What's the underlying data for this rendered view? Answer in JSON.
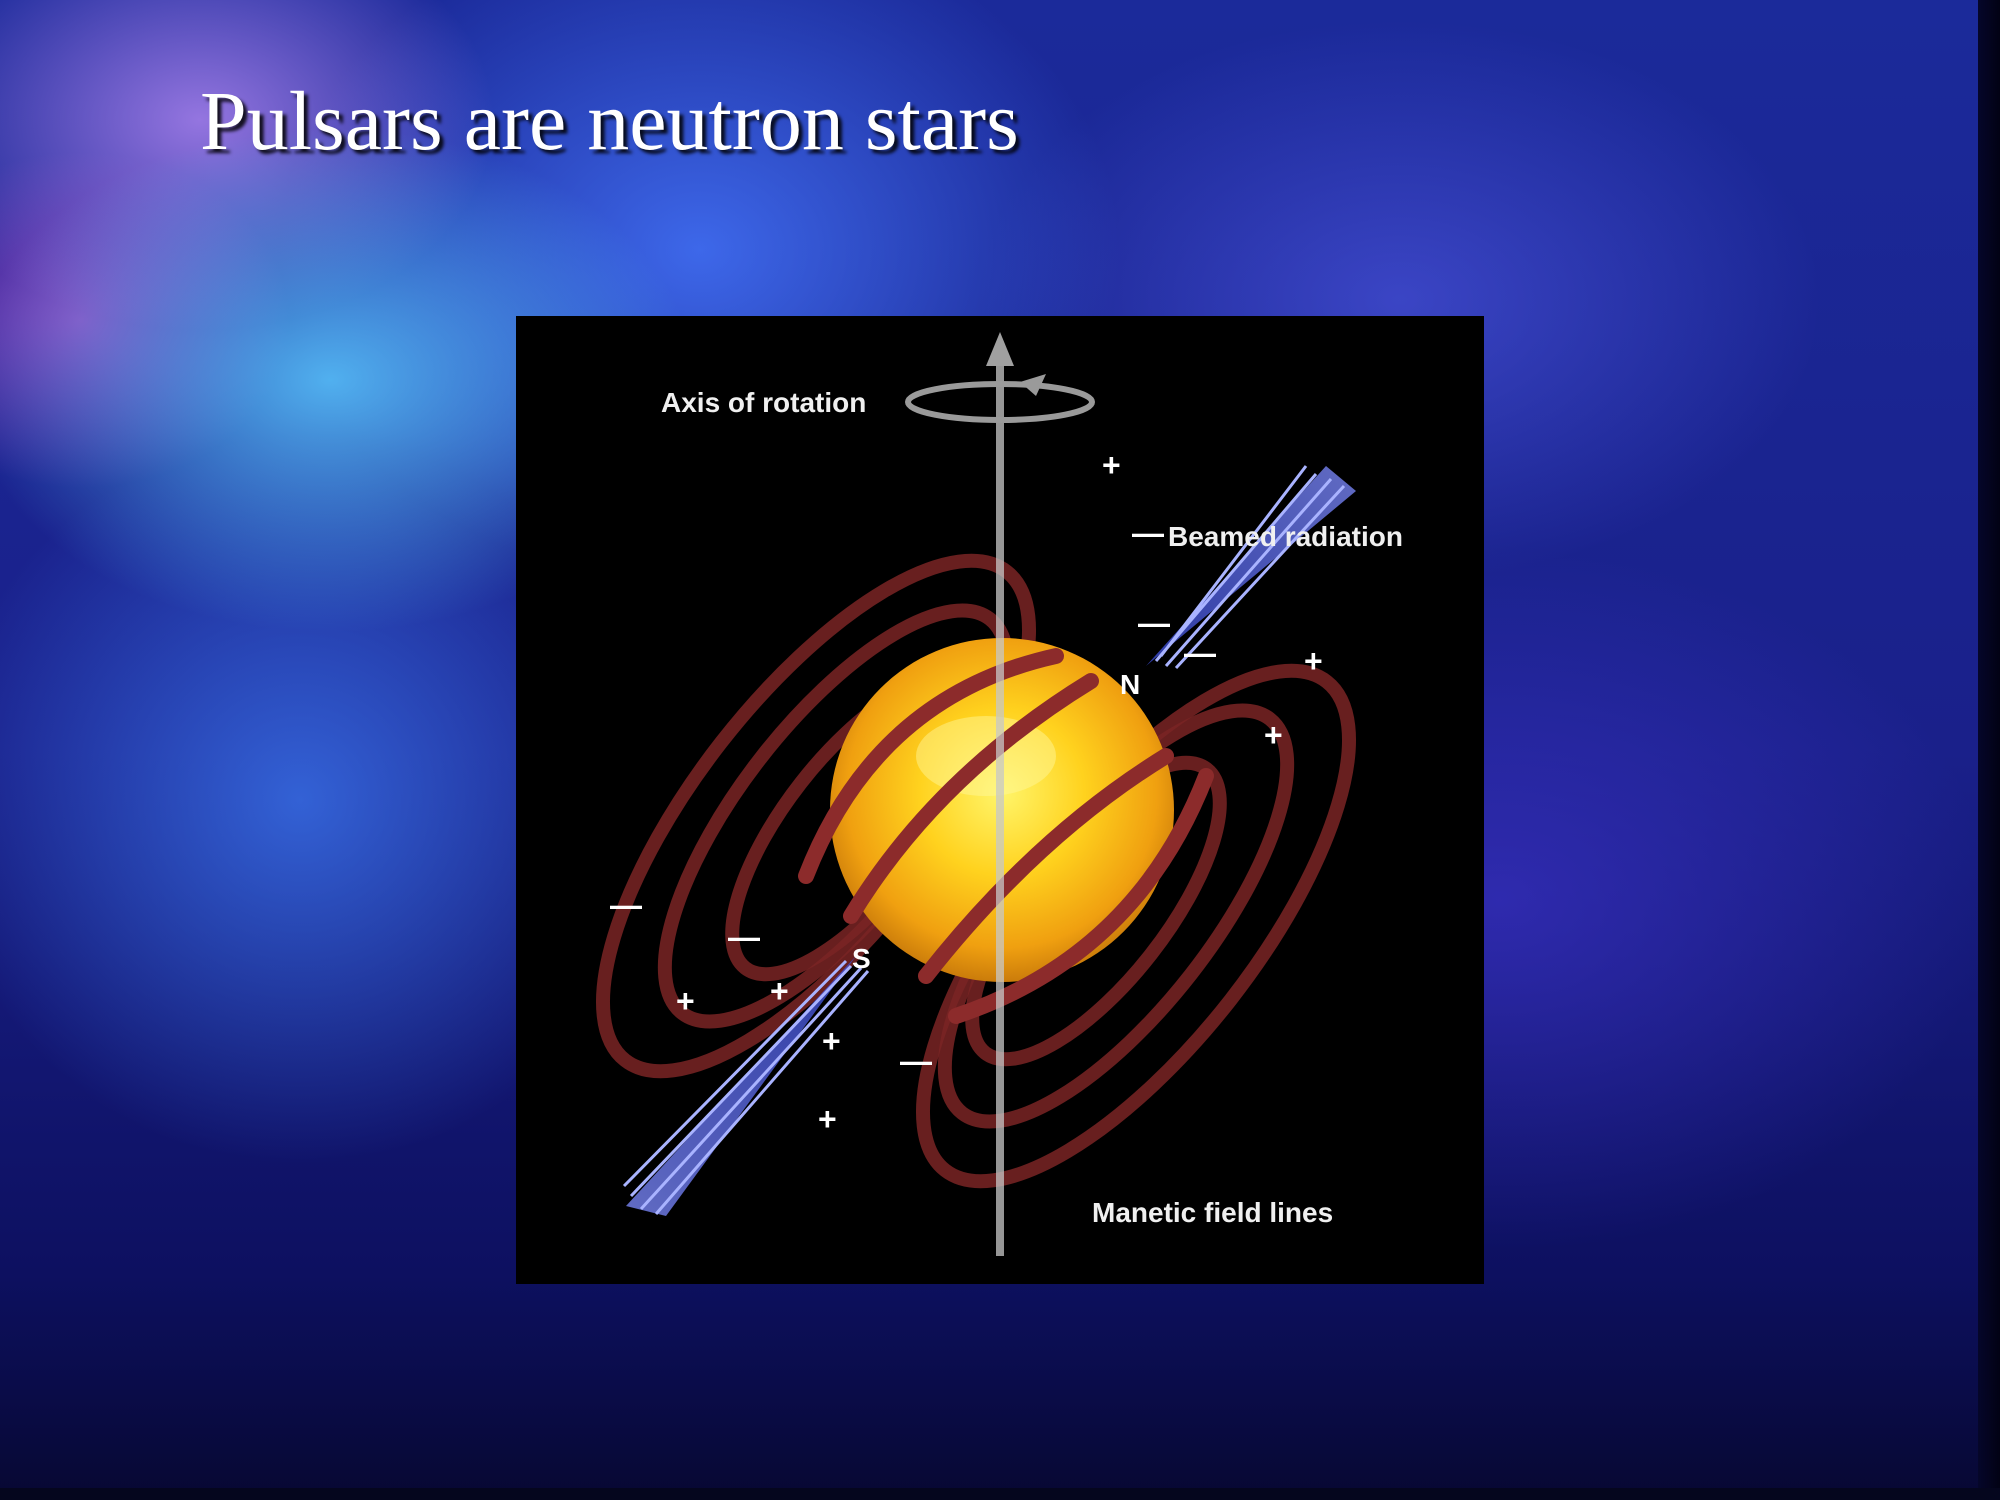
{
  "slide": {
    "title": "Pulsars are neutron stars"
  },
  "diagram": {
    "labels": {
      "axis": "Axis of rotation",
      "beam": "Beamed radiation",
      "field": "Manetic field lines",
      "north_pole": "N",
      "south_pole": "S"
    },
    "charges": [
      {
        "sign": "+"
      },
      {
        "sign": "—"
      },
      {
        "sign": "—"
      },
      {
        "sign": "—"
      },
      {
        "sign": "+"
      },
      {
        "sign": "+"
      },
      {
        "sign": "—"
      },
      {
        "sign": "—"
      },
      {
        "sign": "+"
      },
      {
        "sign": "+"
      },
      {
        "sign": "+"
      },
      {
        "sign": "—"
      },
      {
        "sign": "+"
      }
    ],
    "colors": {
      "background": "#000000",
      "star": "#ffd21e",
      "field_lines": "#8c2b2b",
      "beam": "#5a6cff",
      "axis": "#c8c8c8"
    },
    "icons": [
      "rotation-arrow-icon",
      "axis-arrow-icon"
    ]
  }
}
